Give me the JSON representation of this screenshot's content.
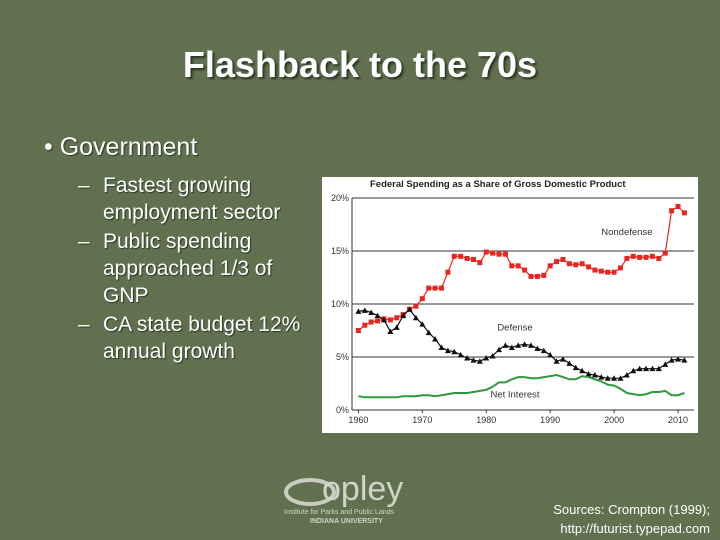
{
  "slide": {
    "title": "Flashback to the 70s",
    "bullets": [
      {
        "text": "Government",
        "sub": [
          "Fastest growing employment sector",
          "Public spending approached 1/3 of GNP",
          "CA state budget 12% annual growth"
        ]
      }
    ],
    "logo": {
      "name": "opley",
      "line1": "Institute for Parks and Public Lands",
      "line2": "INDIANA UNIVERSITY"
    },
    "sources": [
      "Sources: Crompton (1999);",
      "http://futurist.typepad.com"
    ]
  },
  "chart_data": {
    "type": "line",
    "title": "Federal Spending as a Share of Gross Domestic Product",
    "x": [
      1960,
      1961,
      1962,
      1963,
      1964,
      1965,
      1966,
      1967,
      1968,
      1969,
      1970,
      1971,
      1972,
      1973,
      1974,
      1975,
      1976,
      1977,
      1978,
      1979,
      1980,
      1981,
      1982,
      1983,
      1984,
      1985,
      1986,
      1987,
      1988,
      1989,
      1990,
      1991,
      1992,
      1993,
      1994,
      1995,
      1996,
      1997,
      1998,
      1999,
      2000,
      2001,
      2002,
      2003,
      2004,
      2005,
      2006,
      2007,
      2008,
      2009,
      2010,
      2011
    ],
    "series": [
      {
        "name": "Nondefense",
        "color": "#e8261f",
        "marker": "square",
        "values": [
          7.5,
          8.0,
          8.3,
          8.4,
          8.6,
          8.5,
          8.7,
          9.0,
          9.5,
          9.8,
          10.5,
          11.5,
          11.5,
          11.5,
          13.0,
          14.5,
          14.5,
          14.3,
          14.2,
          13.9,
          14.9,
          14.8,
          14.7,
          14.7,
          13.6,
          13.6,
          13.2,
          12.6,
          12.6,
          12.7,
          13.6,
          14.0,
          14.2,
          13.8,
          13.7,
          13.8,
          13.5,
          13.2,
          13.1,
          13.0,
          13.0,
          13.4,
          14.3,
          14.5,
          14.4,
          14.4,
          14.5,
          14.3,
          14.8,
          18.8,
          19.2,
          18.6
        ]
      },
      {
        "name": "Defense",
        "color": "#111111",
        "marker": "triangle",
        "values": [
          9.3,
          9.4,
          9.2,
          8.9,
          8.5,
          7.4,
          7.8,
          8.9,
          9.5,
          8.7,
          8.1,
          7.3,
          6.7,
          5.9,
          5.6,
          5.5,
          5.2,
          4.9,
          4.7,
          4.6,
          4.9,
          5.1,
          5.7,
          6.1,
          5.9,
          6.1,
          6.2,
          6.1,
          5.8,
          5.6,
          5.2,
          4.6,
          4.8,
          4.4,
          4.0,
          3.7,
          3.4,
          3.3,
          3.1,
          3.0,
          3.0,
          3.0,
          3.3,
          3.7,
          3.9,
          3.9,
          3.9,
          3.9,
          4.3,
          4.7,
          4.8,
          4.7
        ]
      },
      {
        "name": "Net Interest",
        "color": "#2e9a3a",
        "marker": null,
        "values": [
          1.3,
          1.2,
          1.2,
          1.2,
          1.2,
          1.2,
          1.2,
          1.3,
          1.3,
          1.3,
          1.4,
          1.4,
          1.3,
          1.4,
          1.5,
          1.6,
          1.6,
          1.6,
          1.7,
          1.8,
          1.9,
          2.2,
          2.6,
          2.6,
          2.9,
          3.1,
          3.1,
          3.0,
          3.0,
          3.1,
          3.2,
          3.3,
          3.1,
          2.9,
          2.9,
          3.2,
          3.1,
          2.9,
          2.7,
          2.4,
          2.3,
          2.0,
          1.6,
          1.5,
          1.4,
          1.5,
          1.7,
          1.7,
          1.8,
          1.4,
          1.4,
          1.6
        ]
      }
    ],
    "xlim": [
      1959,
      2012.5
    ],
    "xticks": [
      1960,
      1970,
      1980,
      1990,
      2000,
      2010
    ],
    "ylim": [
      0,
      20
    ],
    "yticks": [
      {
        "value": 0,
        "label": "0%"
      },
      {
        "value": 5,
        "label": "5%"
      },
      {
        "value": 10,
        "label": "10%"
      },
      {
        "value": 15,
        "label": "15%"
      },
      {
        "value": 20,
        "label": "20%"
      }
    ],
    "grid": true
  }
}
